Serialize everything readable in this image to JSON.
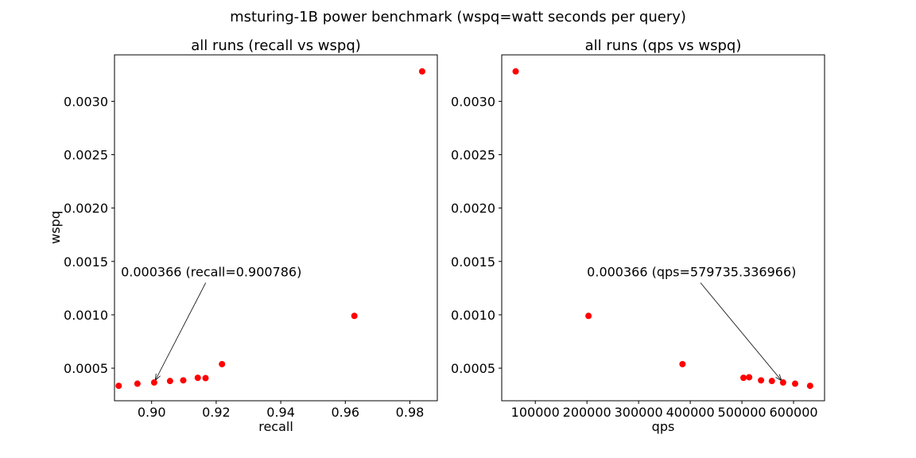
{
  "figure": {
    "suptitle": "msturing-1B power benchmark (wspq=watt seconds per query)"
  },
  "colors": {
    "points": "#ff0000",
    "axes": "#000000",
    "background": "#ffffff"
  },
  "chart_data": [
    {
      "type": "scatter",
      "title": "all runs (recall vs wspq)",
      "xlabel": "recall",
      "ylabel": "wspq",
      "xlim": [
        0.8885,
        0.9885
      ],
      "ylim": [
        0.000195,
        0.003435
      ],
      "xticks": [
        0.9,
        0.92,
        0.94,
        0.96,
        0.98
      ],
      "xtick_labels": [
        "0.90",
        "0.92",
        "0.94",
        "0.96",
        "0.98"
      ],
      "yticks": [
        0.0005,
        0.001,
        0.0015,
        0.002,
        0.0025,
        0.003
      ],
      "ytick_labels": [
        "0.0005",
        "0.0010",
        "0.0015",
        "0.0020",
        "0.0025",
        "0.0030"
      ],
      "grid": false,
      "x": [
        0.8898,
        0.8956,
        0.900786,
        0.9057,
        0.9098,
        0.9143,
        0.9167,
        0.9218,
        0.9628,
        0.9838
      ],
      "y": [
        0.000335,
        0.000355,
        0.000366,
        0.00038,
        0.000386,
        0.00041,
        0.000407,
        0.000538,
        0.00099,
        0.00328
      ],
      "annotation": {
        "text": "0.000366 (recall=0.900786)",
        "xy": [
          0.900786,
          0.000366
        ],
        "xytext": [
          0.8905,
          0.00136
        ]
      }
    },
    {
      "type": "scatter",
      "title": "all runs (qps vs wspq)",
      "xlabel": "qps",
      "ylabel": "",
      "xlim": [
        35000,
        660000
      ],
      "ylim": [
        0.000195,
        0.003435
      ],
      "xticks": [
        100000,
        200000,
        300000,
        400000,
        500000,
        600000
      ],
      "xtick_labels": [
        "100000",
        "200000",
        "300000",
        "400000",
        "500000",
        "600000"
      ],
      "yticks": [
        0.0005,
        0.001,
        0.0015,
        0.002,
        0.0025,
        0.003
      ],
      "ytick_labels": [
        "0.0005",
        "0.0010",
        "0.0015",
        "0.0020",
        "0.0025",
        "0.0030"
      ],
      "grid": false,
      "x": [
        62000,
        203000,
        385000,
        503000,
        514000,
        537000,
        558000,
        579735.336966,
        603000,
        632000
      ],
      "y": [
        0.00328,
        0.00099,
        0.000538,
        0.00041,
        0.000415,
        0.000386,
        0.00038,
        0.000366,
        0.000355,
        0.000335
      ],
      "annotation": {
        "text": "0.000366 (qps=579735.336966)",
        "xy": [
          579735.336966,
          0.000366
        ],
        "xytext": [
          200000,
          0.00136
        ]
      }
    }
  ]
}
